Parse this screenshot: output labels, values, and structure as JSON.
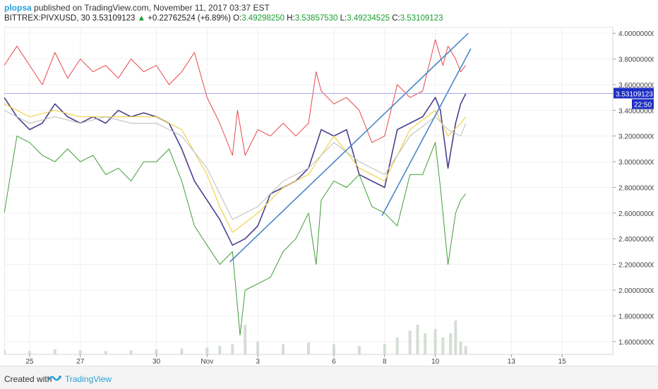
{
  "header": {
    "user": "plopsa",
    "published_text": "published on TradingView.com, November 11, 2017 03:37 EST"
  },
  "symbol_bar": {
    "symbol": "BITTREX:PIVXUSD, 30",
    "last": "3.53109123",
    "change": "+0.22762524 (+6.89%)",
    "o_label": "O:",
    "o": "3.49298250",
    "h_label": "H:",
    "h": "3.53857530",
    "l_label": "L:",
    "l": "3.49234525",
    "c_label": "C:",
    "c": "3.53109123"
  },
  "footer": {
    "created_with": "Created with",
    "brand": "TradingView"
  },
  "colors": {
    "price": "#4b3f8f",
    "upper_band": "#e8474c",
    "lower_band": "#3f9e36",
    "trendline": "#4a86c8",
    "ma_yellow": "#f0d24a",
    "ma_grey": "#bdbdbd",
    "last_price_tag": "#1f2fc4",
    "tag_text": "#ffffff"
  },
  "chart_data": {
    "type": "line",
    "x_range": [
      0,
      24
    ],
    "y_range": [
      1.5,
      4.05
    ],
    "yaxis_ticks": [
      {
        "v": 4.0,
        "label": "4.00000000"
      },
      {
        "v": 3.8,
        "label": "3.80000000"
      },
      {
        "v": 3.6,
        "label": "3.60000000"
      },
      {
        "v": 3.4,
        "label": "3.40000000"
      },
      {
        "v": 3.2,
        "label": "3.20000000"
      },
      {
        "v": 3.0,
        "label": "3.00000000"
      },
      {
        "v": 2.8,
        "label": "2.80000000"
      },
      {
        "v": 2.6,
        "label": "2.60000000"
      },
      {
        "v": 2.4,
        "label": "2.40000000"
      },
      {
        "v": 2.2,
        "label": "2.20000000"
      },
      {
        "v": 2.0,
        "label": "2.00000000"
      },
      {
        "v": 1.8,
        "label": "1.80000000"
      },
      {
        "v": 1.6,
        "label": "1.60000000"
      }
    ],
    "xaxis_ticks": [
      {
        "v": 1,
        "label": "25"
      },
      {
        "v": 3,
        "label": "27"
      },
      {
        "v": 6,
        "label": "30"
      },
      {
        "v": 8,
        "label": "Nov"
      },
      {
        "v": 10,
        "label": "3"
      },
      {
        "v": 13,
        "label": "6"
      },
      {
        "v": 15,
        "label": "8"
      },
      {
        "v": 17,
        "label": "10"
      },
      {
        "v": 20,
        "label": "13"
      },
      {
        "v": 22,
        "label": "15"
      }
    ],
    "last_price": {
      "value": 3.53109123,
      "label": "3.53109123",
      "countdown": "22:50"
    },
    "series": [
      {
        "role": "price",
        "x": [
          0,
          0.5,
          1,
          1.5,
          2,
          2.5,
          3,
          3.5,
          4,
          4.5,
          5,
          5.5,
          6,
          6.5,
          7,
          7.5,
          8,
          8.5,
          9,
          9.5,
          10,
          10.5,
          11,
          11.5,
          12,
          12.5,
          13,
          13.5,
          14,
          14.5,
          15,
          15.5,
          16,
          16.5,
          17,
          17.2,
          17.5,
          17.8,
          18,
          18.2
        ],
        "values": [
          3.5,
          3.35,
          3.25,
          3.3,
          3.45,
          3.35,
          3.3,
          3.35,
          3.3,
          3.4,
          3.35,
          3.38,
          3.35,
          3.3,
          3.1,
          2.85,
          2.7,
          2.55,
          2.35,
          2.4,
          2.5,
          2.75,
          2.8,
          2.85,
          2.95,
          3.25,
          3.2,
          3.25,
          2.9,
          2.85,
          2.8,
          3.25,
          3.3,
          3.35,
          3.5,
          3.4,
          2.95,
          3.3,
          3.45,
          3.53
        ]
      },
      {
        "role": "upper_band",
        "x": [
          0,
          0.5,
          1,
          1.5,
          2,
          2.5,
          3,
          3.5,
          4,
          4.5,
          5,
          5.5,
          6,
          6.5,
          7,
          7.5,
          8,
          8.5,
          9,
          9.2,
          9.5,
          10,
          10.5,
          11,
          11.5,
          12,
          12.3,
          12.5,
          13,
          13.5,
          14,
          14.5,
          15,
          15.5,
          16,
          16.5,
          17,
          17.3,
          17.5,
          17.8,
          18,
          18.2
        ],
        "values": [
          3.75,
          3.9,
          3.75,
          3.6,
          3.85,
          3.65,
          3.8,
          3.7,
          3.75,
          3.65,
          3.8,
          3.7,
          3.75,
          3.6,
          3.7,
          3.85,
          3.5,
          3.3,
          3.05,
          3.4,
          3.05,
          3.25,
          3.2,
          3.3,
          3.2,
          3.3,
          3.7,
          3.55,
          3.45,
          3.5,
          3.4,
          3.15,
          3.2,
          3.6,
          3.5,
          3.55,
          3.95,
          3.75,
          3.9,
          3.8,
          3.7,
          3.75
        ]
      },
      {
        "role": "lower_band",
        "x": [
          0,
          0.5,
          1,
          1.5,
          2,
          2.5,
          3,
          3.5,
          4,
          4.5,
          5,
          5.5,
          6,
          6.5,
          7,
          7.5,
          8,
          8.5,
          9,
          9.3,
          9.5,
          10,
          10.5,
          11,
          11.5,
          12,
          12.3,
          12.5,
          13,
          13.5,
          14,
          14.5,
          15,
          15.5,
          16,
          16.5,
          17,
          17.2,
          17.5,
          17.8,
          18,
          18.2
        ],
        "values": [
          2.6,
          3.2,
          3.15,
          3.05,
          3.0,
          3.1,
          3.0,
          3.05,
          2.9,
          2.95,
          2.85,
          3.0,
          3.0,
          3.1,
          2.85,
          2.5,
          2.35,
          2.2,
          2.3,
          1.65,
          2.0,
          2.05,
          2.1,
          2.3,
          2.4,
          2.6,
          2.2,
          2.7,
          2.85,
          2.8,
          2.9,
          2.65,
          2.6,
          2.5,
          2.9,
          2.9,
          3.15,
          2.8,
          2.2,
          2.6,
          2.7,
          2.75
        ]
      },
      {
        "role": "ma_yellow",
        "x": [
          0,
          1,
          2,
          3,
          4,
          5,
          6,
          7,
          8,
          8.5,
          9,
          10,
          11,
          12,
          13,
          14,
          15,
          16,
          17,
          17.5,
          18,
          18.2
        ],
        "values": [
          3.45,
          3.35,
          3.4,
          3.35,
          3.35,
          3.35,
          3.35,
          3.25,
          2.9,
          2.65,
          2.45,
          2.6,
          2.8,
          2.9,
          3.2,
          2.95,
          2.85,
          3.25,
          3.4,
          3.2,
          3.3,
          3.35
        ]
      },
      {
        "role": "ma_grey",
        "x": [
          0,
          1,
          2,
          3,
          4,
          5,
          6,
          7,
          8,
          8.5,
          9,
          10,
          11,
          12,
          13,
          14,
          15,
          16,
          17,
          17.5,
          18,
          18.2
        ],
        "values": [
          3.4,
          3.3,
          3.35,
          3.3,
          3.35,
          3.3,
          3.3,
          3.2,
          2.95,
          2.75,
          2.55,
          2.65,
          2.85,
          2.95,
          3.15,
          3.0,
          2.9,
          3.2,
          3.35,
          3.25,
          3.2,
          3.3
        ]
      }
    ],
    "trendlines": [
      {
        "x1": 8.9,
        "y1": 2.22,
        "x2": 18.3,
        "y2": 4.0
      },
      {
        "x1": 14.9,
        "y1": 2.58,
        "x2": 18.4,
        "y2": 3.88
      }
    ],
    "volume": {
      "x": [
        0,
        1,
        2,
        3,
        4,
        5,
        6,
        7,
        8,
        8.5,
        9,
        9.5,
        10,
        11,
        12,
        13,
        14,
        15,
        15.5,
        16,
        16.3,
        16.6,
        17,
        17.3,
        17.6,
        17.8,
        18,
        18.2
      ],
      "values": [
        0.05,
        0.04,
        0.06,
        0.05,
        0.04,
        0.05,
        0.06,
        0.07,
        0.08,
        0.1,
        0.12,
        0.35,
        0.15,
        0.12,
        0.14,
        0.12,
        0.1,
        0.12,
        0.2,
        0.28,
        0.35,
        0.25,
        0.3,
        0.2,
        0.25,
        0.4,
        0.15,
        0.1
      ]
    }
  }
}
